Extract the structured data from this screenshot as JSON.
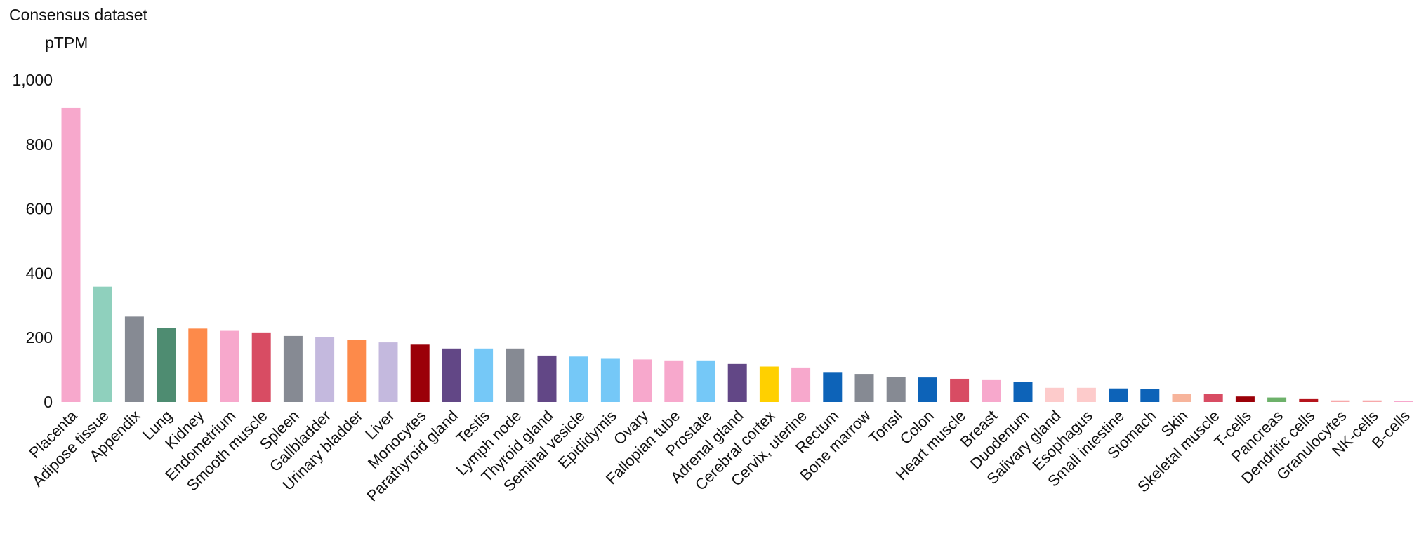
{
  "chart_data": {
    "type": "bar",
    "title": "Consensus dataset",
    "ylabel": "pTPM",
    "xlabel": "",
    "ylim": [
      0,
      1000
    ],
    "yticks": [
      0,
      200,
      400,
      600,
      800,
      1000
    ],
    "ytick_labels": [
      "0",
      "200",
      "400",
      "600",
      "800",
      "1,000"
    ],
    "grid": false,
    "legend": "none",
    "categories": [
      "Placenta",
      "Adipose tissue",
      "Appendix",
      "Lung",
      "Kidney",
      "Endometrium",
      "Smooth muscle",
      "Spleen",
      "Gallbladder",
      "Urinary bladder",
      "Liver",
      "Monocytes",
      "Parathyroid gland",
      "Testis",
      "Lymph node",
      "Thyroid gland",
      "Seminal vesicle",
      "Epididymis",
      "Ovary",
      "Fallopian tube",
      "Prostate",
      "Adrenal gland",
      "Cerebral cortex",
      "Cervix, uterine",
      "Rectum",
      "Bone marrow",
      "Tonsil",
      "Colon",
      "Heart muscle",
      "Breast",
      "Duodenum",
      "Salivary gland",
      "Esophagus",
      "Small intestine",
      "Stomach",
      "Skin",
      "Skeletal muscle",
      "T-cells",
      "Pancreas",
      "Dendritic cells",
      "Granulocytes",
      "NK-cells",
      "B-cells"
    ],
    "values": [
      913,
      358,
      265,
      230,
      228,
      221,
      216,
      205,
      201,
      192,
      185,
      178,
      166,
      166,
      166,
      144,
      141,
      134,
      132,
      129,
      129,
      118,
      110,
      107,
      93,
      87,
      77,
      76,
      72,
      70,
      62,
      44,
      44,
      42,
      41,
      25,
      24,
      17,
      14,
      9,
      5,
      5,
      4
    ],
    "colors": [
      "#f7a8cc",
      "#8fd0bd",
      "#868a93",
      "#4e8c71",
      "#fd8a4a",
      "#f7a8cc",
      "#d84c63",
      "#868a93",
      "#c4b9de",
      "#fd8a4a",
      "#c4b9de",
      "#9b0008",
      "#624786",
      "#75c8f7",
      "#868a93",
      "#624786",
      "#75c8f7",
      "#75c8f7",
      "#f7a8cc",
      "#f7a8cc",
      "#75c8f7",
      "#624786",
      "#ffd000",
      "#f7a8cc",
      "#0d63b8",
      "#868a93",
      "#868a93",
      "#0d63b8",
      "#d84c63",
      "#f7a8cc",
      "#0d63b8",
      "#fdcbcb",
      "#fdcbcb",
      "#0d63b8",
      "#0d63b8",
      "#f7b49b",
      "#d84c63",
      "#9b0008",
      "#6db16a",
      "#b5141c",
      "#f7a8aa",
      "#f7a8aa",
      "#f7a8cc"
    ]
  }
}
